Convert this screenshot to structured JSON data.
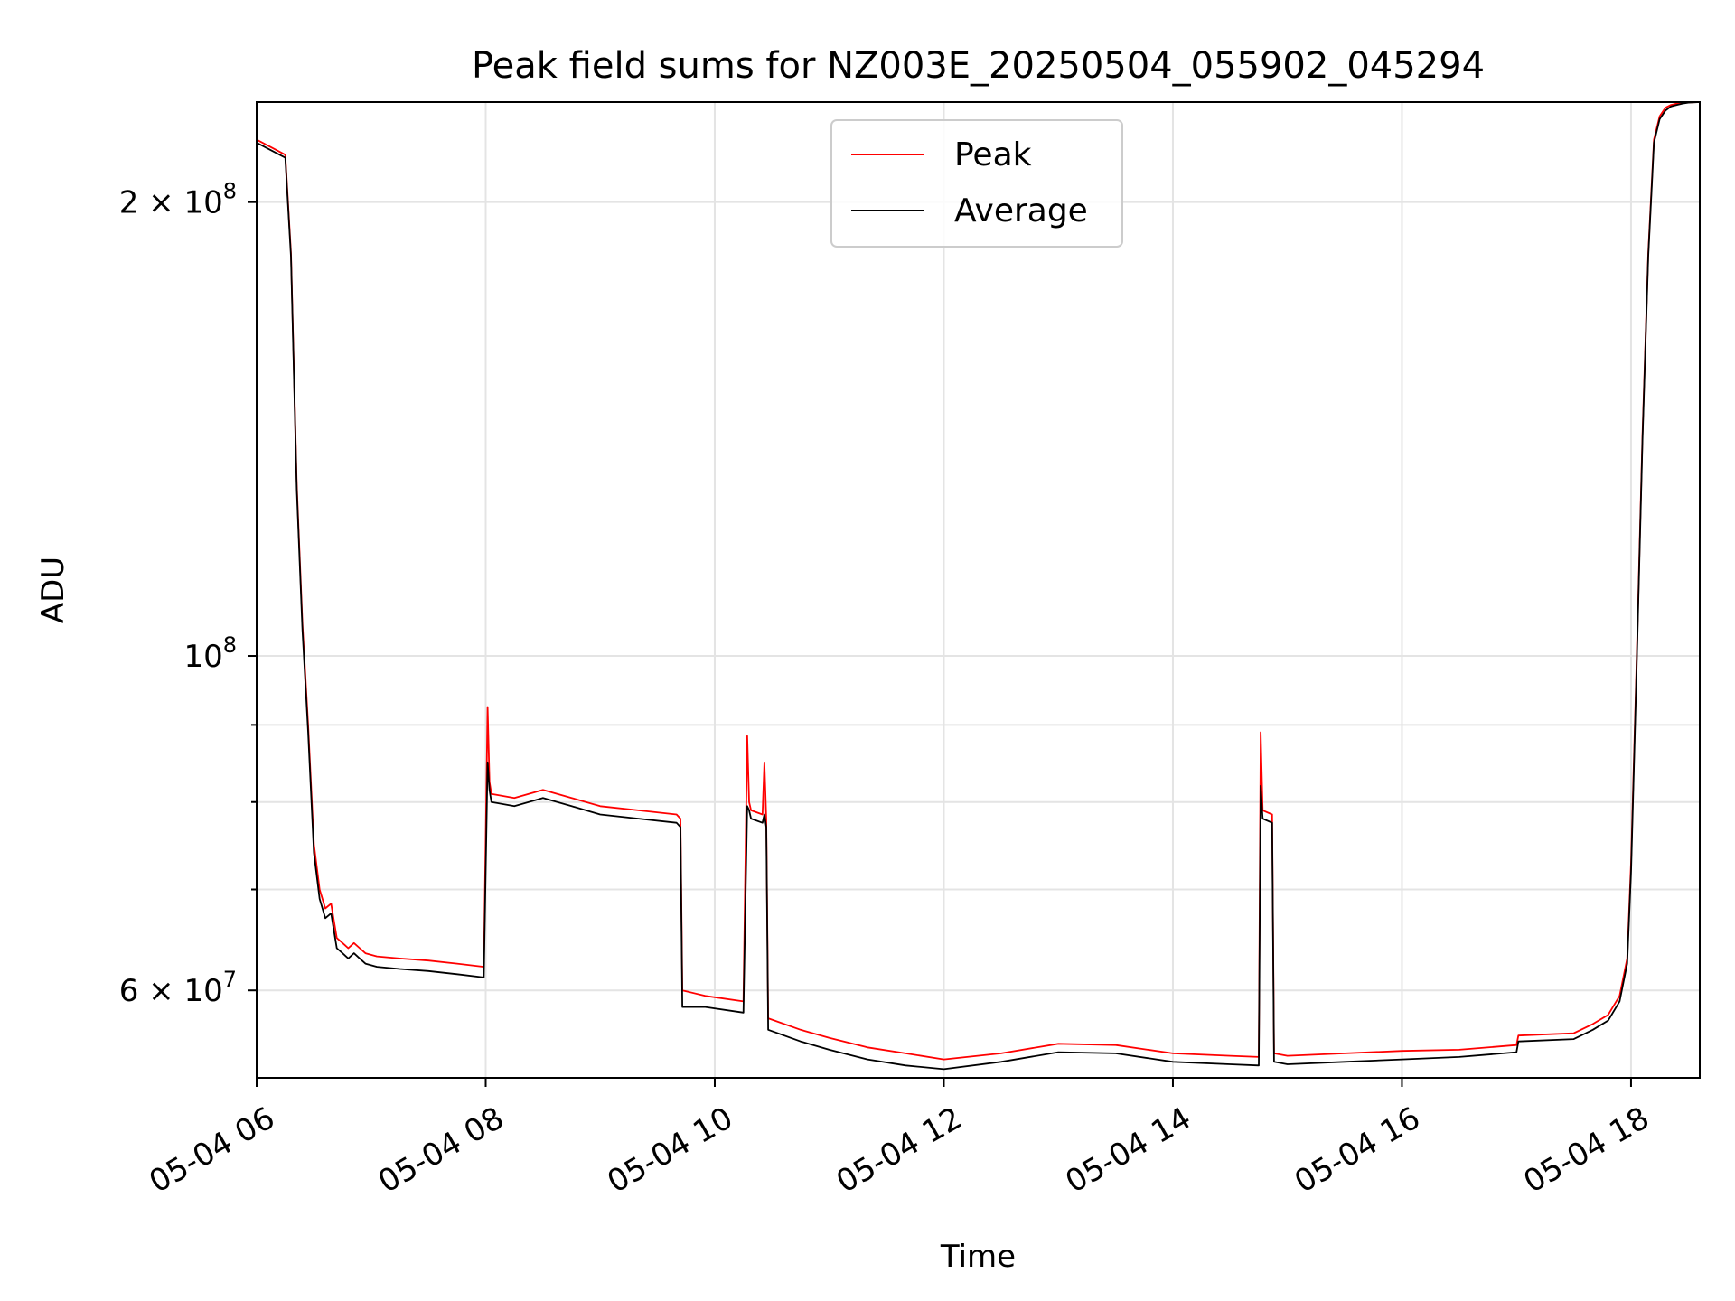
{
  "chart_data": {
    "type": "line",
    "title": "Peak field sums for NZ003E_20250504_055902_045294",
    "xlabel": "Time",
    "ylabel": "ADU",
    "y_scale": "log",
    "ylim": [
      52500000,
      233000000
    ],
    "xlim": [
      "05-04 06:00",
      "05-04 18:36"
    ],
    "grid": true,
    "legend": {
      "position": "top-center"
    },
    "x_ticks": [
      {
        "time": "05-04 06:00",
        "label": "05-04 06"
      },
      {
        "time": "05-04 08:00",
        "label": "05-04 08"
      },
      {
        "time": "05-04 10:00",
        "label": "05-04 10"
      },
      {
        "time": "05-04 12:00",
        "label": "05-04 12"
      },
      {
        "time": "05-04 14:00",
        "label": "05-04 14"
      },
      {
        "time": "05-04 16:00",
        "label": "05-04 16"
      },
      {
        "time": "05-04 18:00",
        "label": "05-04 18"
      }
    ],
    "y_ticks": [
      {
        "value": 60000000,
        "mantissa": "6",
        "exponent": "7"
      },
      {
        "value": 100000000,
        "mantissa": "",
        "exponent": "8"
      },
      {
        "value": 200000000,
        "mantissa": "2",
        "exponent": "8"
      }
    ],
    "y_minor_ticks": [
      70000000,
      80000000,
      90000000
    ],
    "series": [
      {
        "name": "Peak",
        "color": "#ff0000",
        "x": [
          "05-04 06:00",
          "05-04 06:09",
          "05-04 06:15",
          "05-04 06:18",
          "05-04 06:21",
          "05-04 06:24",
          "05-04 06:27",
          "05-04 06:30",
          "05-04 06:33",
          "05-04 06:36",
          "05-04 06:39",
          "05-04 06:42",
          "05-04 06:45",
          "05-04 06:48",
          "05-04 06:51",
          "05-04 06:54",
          "05-04 06:57",
          "05-04 07:03",
          "05-04 07:15",
          "05-04 07:30",
          "05-04 07:45",
          "05-04 07:59",
          "05-04 08:01",
          "05-04 08:02",
          "05-04 08:03",
          "05-04 08:15",
          "05-04 08:30",
          "05-04 08:45",
          "05-04 09:00",
          "05-04 09:20",
          "05-04 09:40",
          "05-04 09:42",
          "05-04 09:43",
          "05-04 09:55",
          "05-04 10:15",
          "05-04 10:17",
          "05-04 10:18",
          "05-04 10:19",
          "05-04 10:25",
          "05-04 10:26",
          "05-04 10:27",
          "05-04 10:28",
          "05-04 10:45",
          "05-04 11:00",
          "05-04 11:20",
          "05-04 11:40",
          "05-04 12:00",
          "05-04 12:30",
          "05-04 13:00",
          "05-04 13:30",
          "05-04 14:00",
          "05-04 14:30",
          "05-04 14:45",
          "05-04 14:46",
          "05-04 14:47",
          "05-04 14:52",
          "05-04 14:53",
          "05-04 15:00",
          "05-04 15:30",
          "05-04 16:00",
          "05-04 16:30",
          "05-04 17:00",
          "05-04 17:01",
          "05-04 17:30",
          "05-04 17:40",
          "05-04 17:48",
          "05-04 17:54",
          "05-04 17:58",
          "05-04 18:00",
          "05-04 18:03",
          "05-04 18:06",
          "05-04 18:09",
          "05-04 18:12",
          "05-04 18:15",
          "05-04 18:18",
          "05-04 18:21",
          "05-04 18:24",
          "05-04 18:27",
          "05-04 18:30",
          "05-04 18:36"
        ],
        "y": [
          220000000,
          217000000,
          215000000,
          185000000,
          130000000,
          105000000,
          90000000,
          75000000,
          70000000,
          68000000,
          68500000,
          65000000,
          64500000,
          64000000,
          64500000,
          64000000,
          63500000,
          63200000,
          63000000,
          62800000,
          62500000,
          62200000,
          92500000,
          82500000,
          81000000,
          80500000,
          81500000,
          80500000,
          79500000,
          79000000,
          78500000,
          78000000,
          60000000,
          59500000,
          59000000,
          88500000,
          80000000,
          79000000,
          78500000,
          85000000,
          78000000,
          57500000,
          56500000,
          55800000,
          55000000,
          54500000,
          54000000,
          54500000,
          55300000,
          55200000,
          54500000,
          54300000,
          54200000,
          89000000,
          79000000,
          78500000,
          54500000,
          54300000,
          54500000,
          54700000,
          54800000,
          55200000,
          56000000,
          56200000,
          57000000,
          57800000,
          59500000,
          63000000,
          73000000,
          100000000,
          140000000,
          185000000,
          220000000,
          228000000,
          231000000,
          232000000,
          232500000,
          232800000,
          232900000,
          233000000
        ]
      },
      {
        "name": "Average",
        "color": "#000000",
        "x": [
          "05-04 06:00",
          "05-04 06:09",
          "05-04 06:15",
          "05-04 06:18",
          "05-04 06:21",
          "05-04 06:24",
          "05-04 06:27",
          "05-04 06:30",
          "05-04 06:33",
          "05-04 06:36",
          "05-04 06:39",
          "05-04 06:42",
          "05-04 06:45",
          "05-04 06:48",
          "05-04 06:51",
          "05-04 06:54",
          "05-04 06:57",
          "05-04 07:03",
          "05-04 07:15",
          "05-04 07:30",
          "05-04 07:45",
          "05-04 07:59",
          "05-04 08:01",
          "05-04 08:02",
          "05-04 08:03",
          "05-04 08:15",
          "05-04 08:30",
          "05-04 08:45",
          "05-04 09:00",
          "05-04 09:20",
          "05-04 09:40",
          "05-04 09:42",
          "05-04 09:43",
          "05-04 09:55",
          "05-04 10:15",
          "05-04 10:17",
          "05-04 10:18",
          "05-04 10:19",
          "05-04 10:25",
          "05-04 10:26",
          "05-04 10:27",
          "05-04 10:28",
          "05-04 10:45",
          "05-04 11:00",
          "05-04 11:20",
          "05-04 11:40",
          "05-04 12:00",
          "05-04 12:30",
          "05-04 13:00",
          "05-04 13:30",
          "05-04 14:00",
          "05-04 14:30",
          "05-04 14:45",
          "05-04 14:46",
          "05-04 14:47",
          "05-04 14:52",
          "05-04 14:53",
          "05-04 15:00",
          "05-04 15:30",
          "05-04 16:00",
          "05-04 16:30",
          "05-04 17:00",
          "05-04 17:01",
          "05-04 17:30",
          "05-04 17:40",
          "05-04 17:48",
          "05-04 17:54",
          "05-04 17:58",
          "05-04 18:00",
          "05-04 18:03",
          "05-04 18:06",
          "05-04 18:09",
          "05-04 18:12",
          "05-04 18:15",
          "05-04 18:18",
          "05-04 18:21",
          "05-04 18:24",
          "05-04 18:27",
          "05-04 18:30",
          "05-04 18:36"
        ],
        "y": [
          219000000,
          216000000,
          214000000,
          184000000,
          129000000,
          104000000,
          89000000,
          74000000,
          69000000,
          67000000,
          67500000,
          64000000,
          63500000,
          63000000,
          63500000,
          63000000,
          62500000,
          62200000,
          62000000,
          61800000,
          61500000,
          61200000,
          85000000,
          81500000,
          80000000,
          79500000,
          80500000,
          79500000,
          78500000,
          78000000,
          77500000,
          77000000,
          58500000,
          58500000,
          58000000,
          79500000,
          79000000,
          78000000,
          77500000,
          78500000,
          77000000,
          56500000,
          55500000,
          54800000,
          54000000,
          53500000,
          53200000,
          53800000,
          54600000,
          54500000,
          53800000,
          53600000,
          53500000,
          82000000,
          78000000,
          77500000,
          53800000,
          53600000,
          53800000,
          54000000,
          54200000,
          54600000,
          55500000,
          55700000,
          56500000,
          57300000,
          59000000,
          62500000,
          72000000,
          99000000,
          139000000,
          184000000,
          219000000,
          227000000,
          230000000,
          231500000,
          232000000,
          232500000,
          232800000,
          233000000
        ]
      }
    ]
  }
}
